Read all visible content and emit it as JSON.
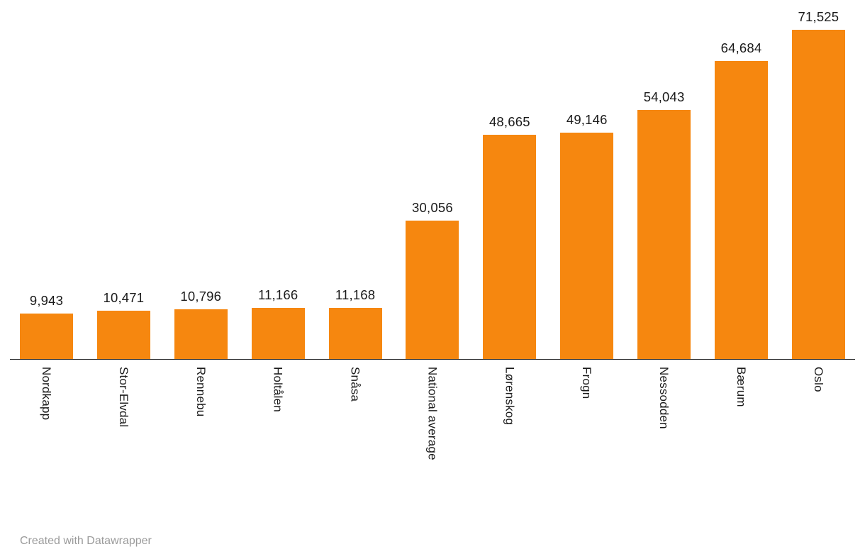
{
  "chart_data": {
    "type": "bar",
    "orientation": "vertical",
    "categories": [
      "Nordkapp",
      "Stor-Elvdal",
      "Rennebu",
      "Holtålen",
      "Snåsa",
      "National average",
      "Lørenskog",
      "Frogn",
      "Nessodden",
      "Bærum",
      "Oslo"
    ],
    "values": [
      9943,
      10471,
      10796,
      11166,
      11168,
      30056,
      48665,
      49146,
      54043,
      64684,
      71525
    ],
    "values_formatted": [
      "9,943",
      "10,471",
      "10,796",
      "11,166",
      "11,168",
      "30,056",
      "48,665",
      "49,146",
      "54,043",
      "64,684",
      "71,525"
    ],
    "title": "",
    "xlabel": "",
    "ylabel": "",
    "ylim": [
      0,
      71525
    ],
    "grid": false,
    "legend": false,
    "bar_color": "#F6870F",
    "value_labels_position": "above-bars",
    "category_labels_rotation": "vertical"
  },
  "colors": {
    "bar": "#F6870F",
    "axis_line": "#18191A",
    "value_label": "#1A1A1A",
    "category_label": "#1A1A1A",
    "footer_text": "#9B9B9B",
    "background": "#FFFFFF"
  },
  "footer": {
    "credit": "Created with Datawrapper"
  }
}
